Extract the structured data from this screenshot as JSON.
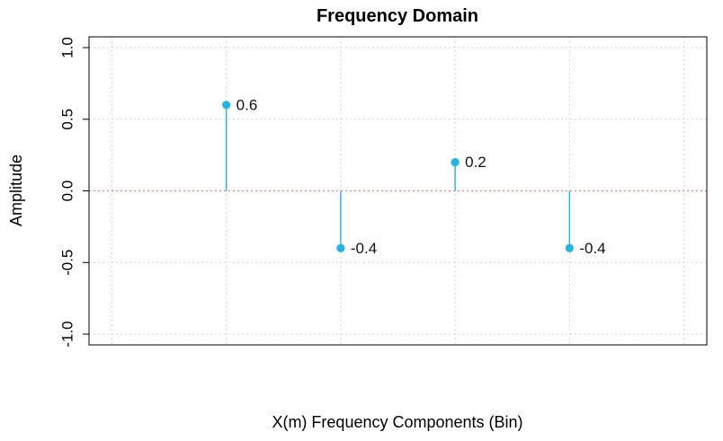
{
  "chart_data": {
    "type": "stem",
    "title": "Frequency Domain",
    "xlabel": "X(m) Frequency Components (Bin)",
    "ylabel": "Amplitude",
    "ylim": [
      -1.0,
      1.0
    ],
    "yticks": [
      "-1.0",
      "-0.5",
      "0.0",
      "0.5",
      "1.0"
    ],
    "ytick_values": [
      -1.0,
      -0.5,
      0.0,
      0.5,
      1.0
    ],
    "xlim": [
      0.8,
      6.2
    ],
    "grid_x": [
      1,
      2,
      3,
      4,
      5,
      6
    ],
    "x": [
      2,
      3,
      4,
      5
    ],
    "values": [
      0.6,
      -0.4,
      0.2,
      -0.4
    ],
    "point_labels": [
      "0.6",
      "-0.4",
      "0.2",
      "-0.4"
    ],
    "series_color": "#1fb4ea",
    "baseline_color": "#f08080",
    "grid": true
  }
}
